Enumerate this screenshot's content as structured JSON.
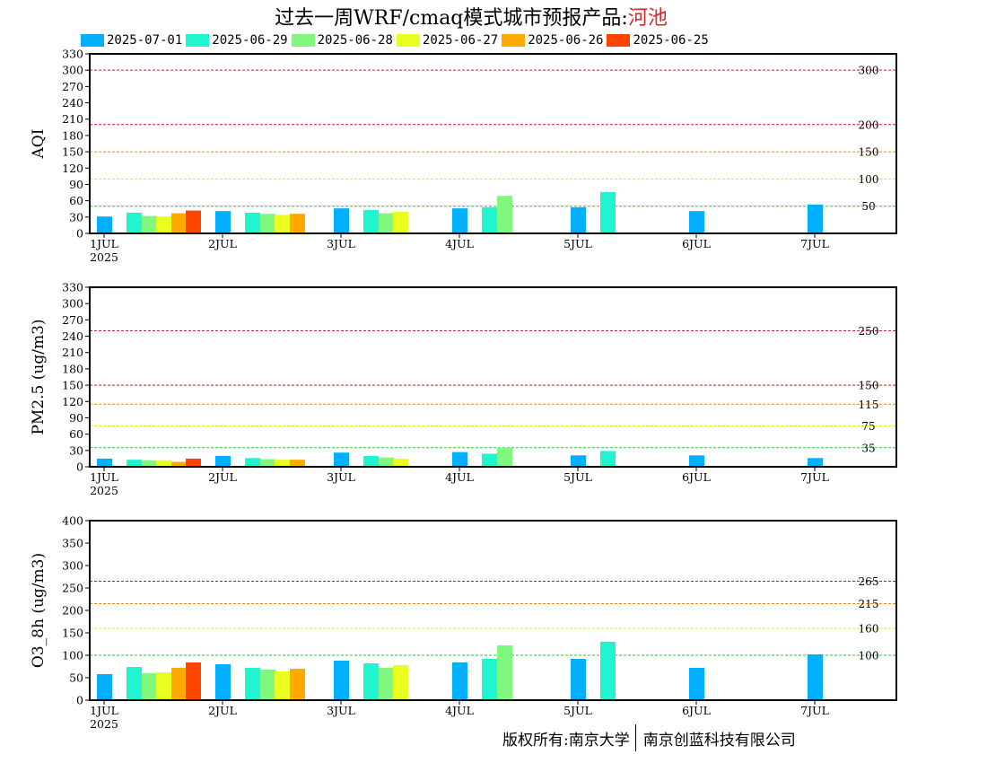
{
  "header": {
    "title": "过去一周WRF/cmaq模式城市预报产品:",
    "city": "河池"
  },
  "legend": [
    {
      "label": "2025-07-01",
      "color": "#00b0ff"
    },
    {
      "label": "2025-06-29",
      "color": "#20f4d0"
    },
    {
      "label": "2025-06-28",
      "color": "#80f880"
    },
    {
      "label": "2025-06-27",
      "color": "#e8ff20"
    },
    {
      "label": "2025-06-26",
      "color": "#ffaa00"
    },
    {
      "label": "2025-06-25",
      "color": "#ff4400"
    }
  ],
  "footer": {
    "copyright": "版权所有:南京大学",
    "company": "南京创蓝科技有限公司"
  },
  "chart_data": [
    {
      "type": "bar",
      "ylabel": "AQI",
      "ylim": [
        0,
        330
      ],
      "yticks": [
        0,
        30,
        60,
        90,
        120,
        150,
        180,
        210,
        240,
        270,
        300,
        330
      ],
      "xticks": [
        "1JUL",
        "2JUL",
        "3JUL",
        "4JUL",
        "5JUL",
        "6JUL",
        "7JUL"
      ],
      "xsub": "2025",
      "thresholds": [
        {
          "value": 300,
          "label": "300",
          "color": "#c01a5c"
        },
        {
          "value": 200,
          "label": "200",
          "color": "#dd1111"
        },
        {
          "value": 150,
          "label": "150",
          "color": "#ee8800"
        },
        {
          "value": 100,
          "label": "100",
          "color": "#e8e800"
        },
        {
          "value": 50,
          "label": "50",
          "color": "#22cc22"
        }
      ],
      "series": [
        {
          "name": "2025-07-01",
          "values": [
            31,
            41,
            46,
            46,
            48,
            41,
            53
          ]
        },
        {
          "name": "2025-06-29",
          "values": [
            38,
            38,
            43,
            48,
            76
          ]
        },
        {
          "name": "2025-06-28",
          "values": [
            32,
            36,
            37,
            69
          ]
        },
        {
          "name": "2025-06-27",
          "values": [
            31,
            34,
            40
          ]
        },
        {
          "name": "2025-06-26",
          "values": [
            37,
            36
          ]
        },
        {
          "name": "2025-06-25",
          "values": [
            42
          ]
        }
      ]
    },
    {
      "type": "bar",
      "ylabel": "PM2.5 (ug/m3)",
      "ylim": [
        0,
        330
      ],
      "yticks": [
        0,
        30,
        60,
        90,
        120,
        150,
        180,
        210,
        240,
        270,
        300,
        330
      ],
      "xticks": [
        "1JUL",
        "2JUL",
        "3JUL",
        "4JUL",
        "5JUL",
        "6JUL",
        "7JUL"
      ],
      "xsub": "2025",
      "thresholds": [
        {
          "value": 250,
          "label": "250",
          "color": "#c01a5c"
        },
        {
          "value": 150,
          "label": "150",
          "color": "#dd1111"
        },
        {
          "value": 115,
          "label": "115",
          "color": "#ee8800"
        },
        {
          "value": 75,
          "label": "75",
          "color": "#e8e800"
        },
        {
          "value": 35,
          "label": "35",
          "color": "#22cc22"
        }
      ],
      "series": [
        {
          "name": "2025-07-01",
          "values": [
            15,
            20,
            26,
            27,
            21,
            21,
            16
          ]
        },
        {
          "name": "2025-06-29",
          "values": [
            13,
            16,
            20,
            24,
            29
          ]
        },
        {
          "name": "2025-06-28",
          "values": [
            12,
            14,
            17,
            35
          ]
        },
        {
          "name": "2025-06-27",
          "values": [
            12,
            13,
            15
          ]
        },
        {
          "name": "2025-06-26",
          "values": [
            9,
            13
          ]
        },
        {
          "name": "2025-06-25",
          "values": [
            15
          ]
        }
      ]
    },
    {
      "type": "bar",
      "ylabel": "O3_8h (ug/m3)",
      "ylim": [
        0,
        400
      ],
      "yticks": [
        0,
        50,
        100,
        150,
        200,
        250,
        300,
        350,
        400
      ],
      "xticks": [
        "1JUL",
        "2JUL",
        "3JUL",
        "4JUL",
        "5JUL",
        "6JUL",
        "7JUL"
      ],
      "xsub": "2025",
      "thresholds": [
        {
          "value": 265,
          "label": "265",
          "color": "#dd1111"
        },
        {
          "value": 215,
          "label": "215",
          "color": "#ee8800"
        },
        {
          "value": 160,
          "label": "160",
          "color": "#e8e800"
        },
        {
          "value": 100,
          "label": "100",
          "color": "#22cc22"
        }
      ],
      "series": [
        {
          "name": "2025-07-01",
          "values": [
            58,
            80,
            88,
            84,
            92,
            72,
            102
          ]
        },
        {
          "name": "2025-06-29",
          "values": [
            74,
            72,
            82,
            92,
            130
          ]
        },
        {
          "name": "2025-06-28",
          "values": [
            60,
            68,
            72,
            122
          ]
        },
        {
          "name": "2025-06-27",
          "values": [
            62,
            64,
            78
          ]
        },
        {
          "name": "2025-06-26",
          "values": [
            72,
            70
          ]
        },
        {
          "name": "2025-06-25",
          "values": [
            84
          ]
        }
      ]
    }
  ]
}
